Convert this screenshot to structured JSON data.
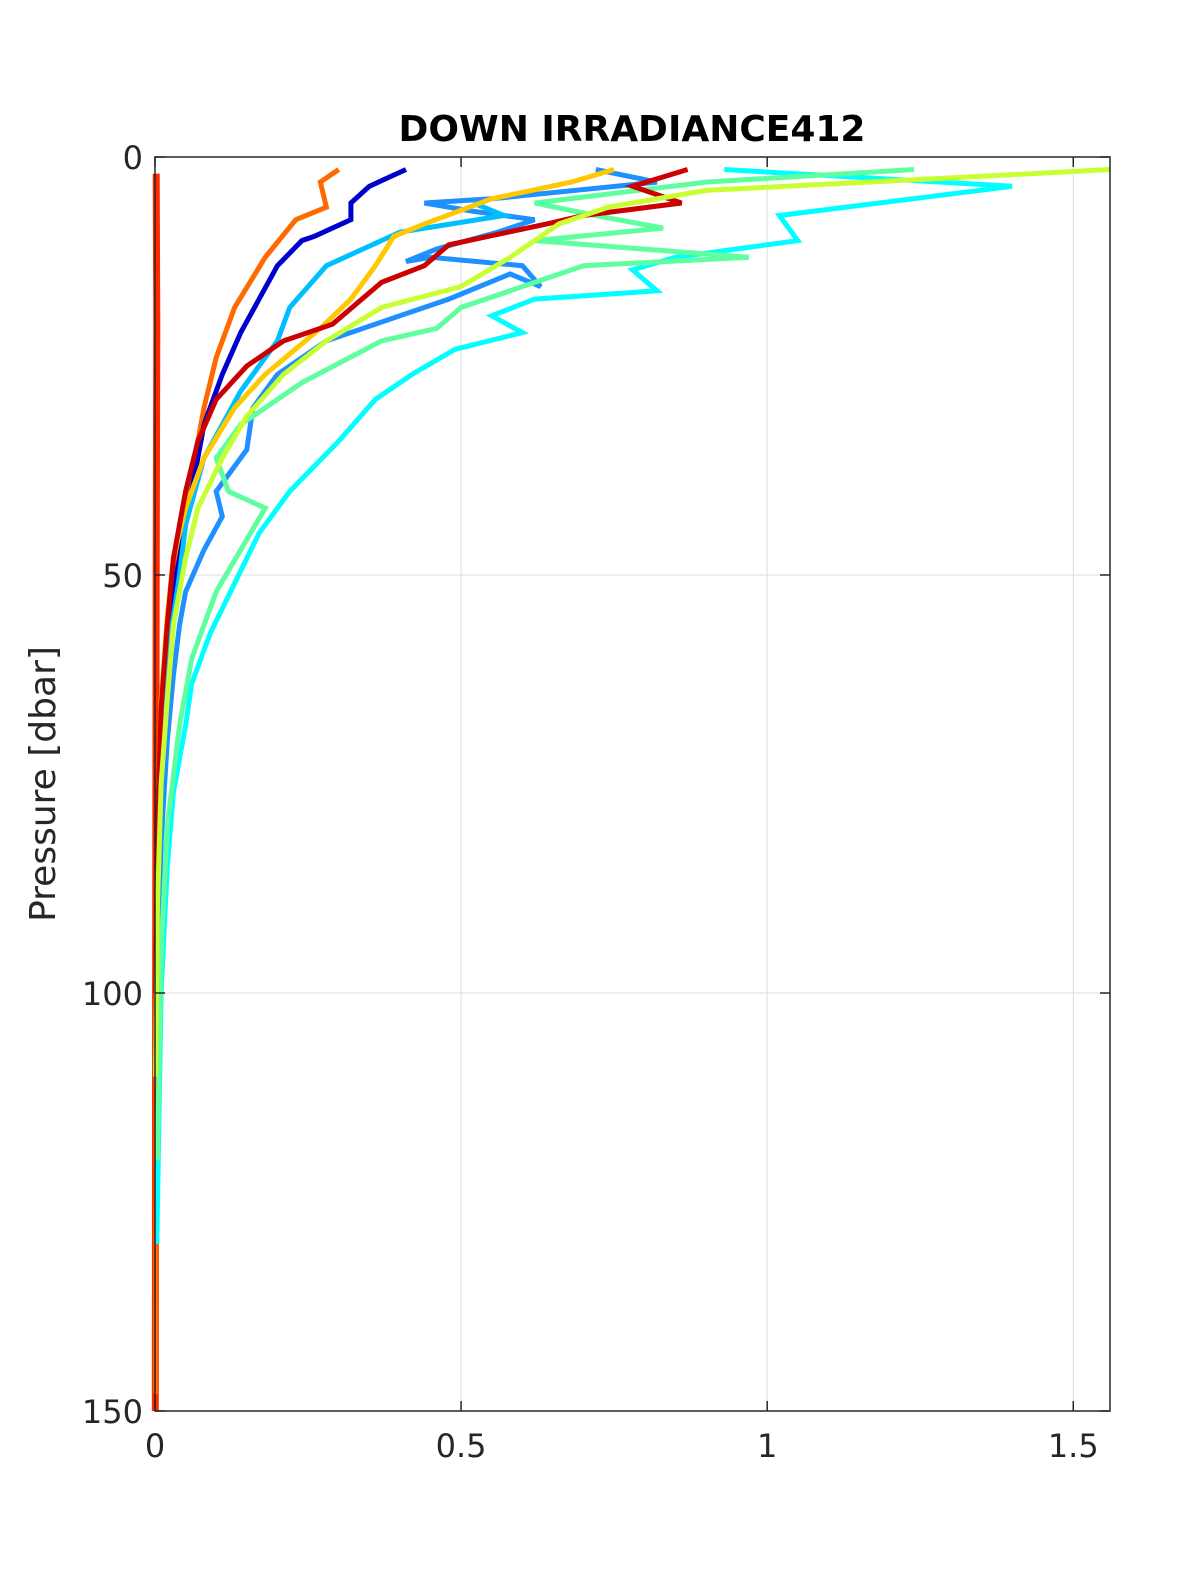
{
  "chart_data": {
    "type": "line",
    "title": "DOWN IRRADIANCE412",
    "xlabel": "",
    "ylabel": "Pressure [dbar]",
    "xlim": [
      0,
      1.56
    ],
    "ylim": [
      0,
      150
    ],
    "y_reversed": true,
    "grid": true,
    "x_ticks": [
      0,
      0.5,
      1,
      1.5
    ],
    "x_tick_labels": [
      "0",
      "0.5",
      "1",
      "1.5"
    ],
    "y_ticks": [
      0,
      50,
      100,
      150
    ],
    "y_tick_labels": [
      "0",
      "50",
      "100",
      "150"
    ],
    "series": [
      {
        "color": "#ff2a00",
        "width": 7,
        "points": [
          [
            0.002,
            2
          ],
          [
            0.003,
            20
          ],
          [
            0.002,
            50
          ],
          [
            0.001,
            100
          ],
          [
            0.0005,
            150
          ]
        ]
      },
      {
        "color": "#ff6a00",
        "width": 5,
        "points": [
          [
            0.3,
            1.5
          ],
          [
            0.27,
            3
          ],
          [
            0.28,
            6
          ],
          [
            0.23,
            7.5
          ],
          [
            0.18,
            12
          ],
          [
            0.13,
            18
          ],
          [
            0.1,
            24
          ],
          [
            0.08,
            30
          ],
          [
            0.06,
            38
          ],
          [
            0.04,
            46
          ],
          [
            0.03,
            52
          ],
          [
            0.02,
            58
          ],
          [
            0.01,
            70
          ],
          [
            0.005,
            85
          ],
          [
            0.002,
            100
          ],
          [
            0.001,
            148
          ]
        ]
      },
      {
        "color": "#0000cc",
        "width": 5,
        "points": [
          [
            0.41,
            1.5
          ],
          [
            0.38,
            2.5
          ],
          [
            0.35,
            3.5
          ],
          [
            0.32,
            5.5
          ],
          [
            0.32,
            7.5
          ],
          [
            0.26,
            9.5
          ],
          [
            0.24,
            10
          ],
          [
            0.2,
            13
          ],
          [
            0.17,
            17
          ],
          [
            0.14,
            21
          ],
          [
            0.11,
            26
          ],
          [
            0.08,
            32
          ],
          [
            0.06,
            40
          ],
          [
            0.04,
            48
          ],
          [
            0.02,
            56
          ],
          [
            0.01,
            70
          ],
          [
            0.004,
            85
          ],
          [
            0.001,
            100
          ]
        ]
      },
      {
        "color": "#1e90ff",
        "width": 5,
        "points": [
          [
            0.72,
            1.5
          ],
          [
            0.82,
            3
          ],
          [
            0.55,
            5
          ],
          [
            0.44,
            5.5
          ],
          [
            0.52,
            6.5
          ],
          [
            0.62,
            7.5
          ],
          [
            0.56,
            9
          ],
          [
            0.46,
            11
          ],
          [
            0.41,
            12.5
          ],
          [
            0.45,
            12
          ],
          [
            0.6,
            13
          ],
          [
            0.63,
            15.5
          ],
          [
            0.58,
            14
          ],
          [
            0.48,
            17
          ],
          [
            0.4,
            19
          ],
          [
            0.28,
            22
          ],
          [
            0.2,
            26
          ],
          [
            0.16,
            30
          ],
          [
            0.15,
            35
          ],
          [
            0.1,
            40
          ],
          [
            0.11,
            43
          ],
          [
            0.08,
            47
          ],
          [
            0.05,
            52
          ],
          [
            0.04,
            56
          ],
          [
            0.03,
            62
          ],
          [
            0.02,
            70
          ],
          [
            0.01,
            82
          ],
          [
            0.004,
            100
          ]
        ]
      },
      {
        "color": "#00bfff",
        "width": 5,
        "points": [
          [
            0.52,
            5.5
          ],
          [
            0.57,
            7
          ],
          [
            0.4,
            9
          ],
          [
            0.28,
            13
          ],
          [
            0.22,
            18
          ],
          [
            0.2,
            22
          ],
          [
            0.14,
            28
          ],
          [
            0.08,
            36
          ],
          [
            0.05,
            44
          ],
          [
            0.04,
            50
          ],
          [
            0.02,
            60
          ],
          [
            0.01,
            72
          ],
          [
            0.004,
            90
          ],
          [
            0.001,
            110
          ]
        ]
      },
      {
        "color": "#00ffff",
        "width": 5,
        "points": [
          [
            0.93,
            1.5
          ],
          [
            1.4,
            3.5
          ],
          [
            1.02,
            7
          ],
          [
            1.05,
            10
          ],
          [
            0.85,
            12
          ],
          [
            0.78,
            13.5
          ],
          [
            0.82,
            16
          ],
          [
            0.62,
            17
          ],
          [
            0.55,
            19
          ],
          [
            0.6,
            21
          ],
          [
            0.49,
            23
          ],
          [
            0.42,
            26
          ],
          [
            0.36,
            29
          ],
          [
            0.3,
            34
          ],
          [
            0.22,
            40
          ],
          [
            0.17,
            45
          ],
          [
            0.13,
            51
          ],
          [
            0.09,
            57
          ],
          [
            0.06,
            63
          ],
          [
            0.05,
            68
          ],
          [
            0.03,
            76
          ],
          [
            0.02,
            85
          ],
          [
            0.01,
            100
          ],
          [
            0.003,
            130
          ]
        ]
      },
      {
        "color": "#5fffa0",
        "width": 5,
        "points": [
          [
            1.24,
            1.5
          ],
          [
            0.9,
            3
          ],
          [
            0.62,
            5.5
          ],
          [
            0.72,
            7
          ],
          [
            0.83,
            8.5
          ],
          [
            0.62,
            10
          ],
          [
            0.97,
            12
          ],
          [
            0.7,
            13
          ],
          [
            0.58,
            16
          ],
          [
            0.5,
            18
          ],
          [
            0.46,
            20.5
          ],
          [
            0.37,
            22
          ],
          [
            0.24,
            27
          ],
          [
            0.14,
            32
          ],
          [
            0.1,
            36
          ],
          [
            0.12,
            40
          ],
          [
            0.18,
            42
          ],
          [
            0.14,
            47
          ],
          [
            0.1,
            52
          ],
          [
            0.06,
            60
          ],
          [
            0.04,
            68
          ],
          [
            0.02,
            80
          ],
          [
            0.01,
            95
          ],
          [
            0.004,
            120
          ]
        ]
      },
      {
        "color": "#ffc800",
        "width": 5,
        "points": [
          [
            0.75,
            1.5
          ],
          [
            0.68,
            3
          ],
          [
            0.55,
            5
          ],
          [
            0.44,
            8
          ],
          [
            0.39,
            9.5
          ],
          [
            0.36,
            13
          ],
          [
            0.32,
            17
          ],
          [
            0.27,
            20.5
          ],
          [
            0.18,
            26
          ],
          [
            0.13,
            30
          ],
          [
            0.08,
            36
          ],
          [
            0.05,
            42
          ],
          [
            0.03,
            48
          ],
          [
            0.02,
            55
          ],
          [
            0.01,
            65
          ],
          [
            0.004,
            80
          ],
          [
            0.001,
            100
          ]
        ]
      },
      {
        "color": "#cc0000",
        "width": 5,
        "points": [
          [
            0.87,
            1.5
          ],
          [
            0.78,
            3.5
          ],
          [
            0.86,
            5.5
          ],
          [
            0.7,
            7
          ],
          [
            0.64,
            8
          ],
          [
            0.48,
            10.5
          ],
          [
            0.44,
            13
          ],
          [
            0.37,
            15
          ],
          [
            0.29,
            20
          ],
          [
            0.21,
            22
          ],
          [
            0.15,
            25
          ],
          [
            0.1,
            29
          ],
          [
            0.07,
            34
          ],
          [
            0.05,
            40
          ],
          [
            0.03,
            48
          ],
          [
            0.02,
            56
          ],
          [
            0.01,
            66
          ],
          [
            0.004,
            80
          ],
          [
            0.001,
            100
          ]
        ]
      },
      {
        "color": "#c8ff32",
        "width": 5,
        "points": [
          [
            1.56,
            1.5
          ],
          [
            1.3,
            2.5
          ],
          [
            0.9,
            4
          ],
          [
            0.74,
            6
          ],
          [
            0.66,
            8
          ],
          [
            0.62,
            10
          ],
          [
            0.58,
            12
          ],
          [
            0.5,
            15.5
          ],
          [
            0.37,
            18
          ],
          [
            0.28,
            22
          ],
          [
            0.21,
            26
          ],
          [
            0.15,
            31
          ],
          [
            0.11,
            36
          ],
          [
            0.07,
            42
          ],
          [
            0.05,
            48
          ],
          [
            0.03,
            56
          ],
          [
            0.02,
            65
          ],
          [
            0.01,
            75
          ],
          [
            0.004,
            90
          ],
          [
            0.001,
            110
          ]
        ]
      }
    ]
  }
}
